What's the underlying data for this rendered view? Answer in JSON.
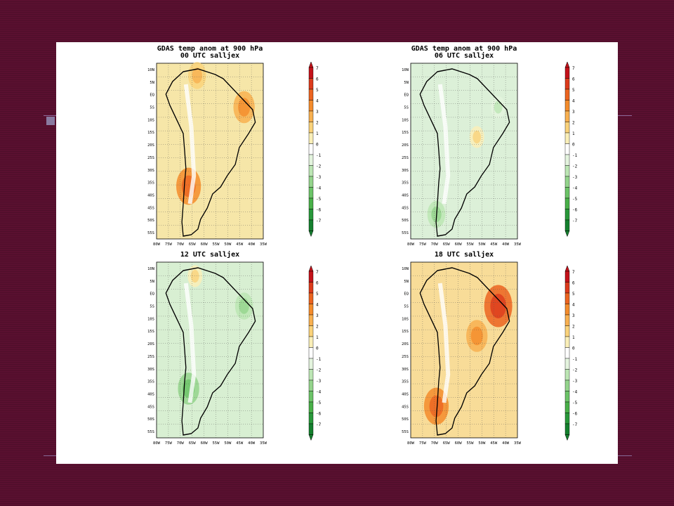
{
  "slide": {
    "background": "#5a1030",
    "accent": "#8a7aa0"
  },
  "figure": {
    "land_tint_by_panel": [
      "#f6e6a8",
      "#dcf0d8",
      "#d8efd2",
      "#f8dc98"
    ]
  },
  "chart_data": [
    {
      "type": "heatmap",
      "title": "GDAS temp anom at 900 hPa",
      "subtitle": "00 UTC salljex",
      "xlabel": "",
      "ylabel": "",
      "x_ticks": [
        "80W",
        "75W",
        "70W",
        "65W",
        "60W",
        "55W",
        "50W",
        "45W",
        "40W",
        "35W"
      ],
      "y_ticks": [
        "10N",
        "5N",
        "EQ",
        "5S",
        "10S",
        "15S",
        "20S",
        "25S",
        "30S",
        "35S",
        "40S",
        "45S",
        "50S",
        "55S"
      ],
      "grid": true,
      "colorbar": {
        "levels": [
          7,
          6,
          5,
          4,
          3,
          2,
          1,
          0,
          -1,
          -2,
          -3,
          -4,
          -5,
          -6,
          -7
        ]
      },
      "anomaly_regions": [
        {
          "region": "northeast Brazil",
          "value": 3
        },
        {
          "region": "northern Argentina",
          "value": 4
        },
        {
          "region": "Venezuela coast",
          "value": 2
        }
      ]
    },
    {
      "type": "heatmap",
      "title": "GDAS temp anom at 900 hPa",
      "subtitle": "06 UTC salljex",
      "xlabel": "",
      "ylabel": "",
      "x_ticks": [
        "80W",
        "75W",
        "70W",
        "65W",
        "60W",
        "55W",
        "50W",
        "45W",
        "40W",
        "35W"
      ],
      "y_ticks": [
        "10N",
        "5N",
        "EQ",
        "5S",
        "10S",
        "15S",
        "20S",
        "25S",
        "30S",
        "35S",
        "40S",
        "45S",
        "50S",
        "55S"
      ],
      "grid": true,
      "colorbar": {
        "levels": [
          7,
          6,
          5,
          4,
          3,
          2,
          1,
          0,
          -1,
          -2,
          -3,
          -4,
          -5,
          -6,
          -7
        ]
      },
      "anomaly_regions": [
        {
          "region": "northeast Brazil",
          "value": -1
        },
        {
          "region": "central Brazil",
          "value": 1
        },
        {
          "region": "Patagonia",
          "value": -2
        }
      ]
    },
    {
      "type": "heatmap",
      "title": "",
      "subtitle": "12 UTC salljex",
      "xlabel": "",
      "ylabel": "",
      "x_ticks": [
        "80W",
        "75W",
        "70W",
        "65W",
        "60W",
        "55W",
        "50W",
        "45W",
        "40W",
        "35W"
      ],
      "y_ticks": [
        "10N",
        "5N",
        "EQ",
        "5S",
        "10S",
        "15S",
        "20S",
        "25S",
        "30S",
        "35S",
        "40S",
        "45S",
        "50S",
        "55S"
      ],
      "grid": true,
      "colorbar": {
        "levels": [
          7,
          6,
          5,
          4,
          3,
          2,
          1,
          0,
          -1,
          -2,
          -3,
          -4,
          -5,
          -6,
          -7
        ]
      },
      "anomaly_regions": [
        {
          "region": "northeast Brazil",
          "value": -2
        },
        {
          "region": "Andes foothills",
          "value": -3
        },
        {
          "region": "Caribbean coast",
          "value": 1
        }
      ]
    },
    {
      "type": "heatmap",
      "title": "",
      "subtitle": "18 UTC salljex",
      "xlabel": "",
      "ylabel": "",
      "x_ticks": [
        "80W",
        "75W",
        "70W",
        "65W",
        "60W",
        "55W",
        "50W",
        "45W",
        "40W",
        "35W"
      ],
      "y_ticks": [
        "10N",
        "5N",
        "EQ",
        "5S",
        "10S",
        "15S",
        "20S",
        "25S",
        "30S",
        "35S",
        "40S",
        "45S",
        "50S",
        "55S"
      ],
      "grid": true,
      "colorbar": {
        "levels": [
          7,
          6,
          5,
          4,
          3,
          2,
          1,
          0,
          -1,
          -2,
          -3,
          -4,
          -5,
          -6,
          -7
        ]
      },
      "anomaly_regions": [
        {
          "region": "northeast Brazil",
          "value": 5
        },
        {
          "region": "central Brazil",
          "value": 3
        },
        {
          "region": "southern Argentina",
          "value": 4
        }
      ]
    }
  ]
}
